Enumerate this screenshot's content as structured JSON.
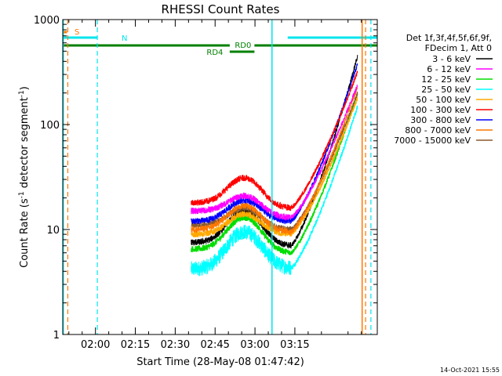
{
  "chart_data": {
    "type": "line",
    "title": "RHESSI Count Rates",
    "xlabel": "Start Time (28-May-08 01:47:42)",
    "ylabel_main": "Count Rate (s",
    "ylabel_sup": "-1",
    "ylabel_tail": " detector segment",
    "ylabel_sup2": "-1",
    "ylabel_close": ")",
    "yscale": "log",
    "ylim": [
      1,
      1000
    ],
    "xlim_min": [
      107.7,
      226
    ],
    "y_ticks": [
      {
        "v": 1,
        "label": "1"
      },
      {
        "v": 10,
        "label": "10"
      },
      {
        "v": 100,
        "label": "100"
      },
      {
        "v": 1000,
        "label": "1000"
      }
    ],
    "x_ticks": [
      {
        "m": 120,
        "label": "02:00"
      },
      {
        "m": 135,
        "label": "02:15"
      },
      {
        "m": 150,
        "label": "02:30"
      },
      {
        "m": 165,
        "label": "02:45"
      },
      {
        "m": 180,
        "label": "03:00"
      },
      {
        "m": 195,
        "label": "03:15"
      }
    ],
    "legend_header": [
      "Det 1f,3f,4f,5f,6f,9f,",
      "FDecim 1, Att 0"
    ],
    "timestamp": "14-Oct-2021 15:55",
    "series": [
      {
        "name": "3 - 6 keV",
        "color": "#000000",
        "pre": 7.5,
        "peak": 15,
        "post": 7,
        "end": 450
      },
      {
        "name": "6 - 12 keV",
        "color": "#ff00ff",
        "pre": 15,
        "peak": 21,
        "post": 13,
        "end": 240
      },
      {
        "name": "12 - 25 keV",
        "color": "#00dd00",
        "pre": 6.5,
        "peak": 13,
        "post": 6,
        "end": 200
      },
      {
        "name": "25 - 50 keV",
        "color": "#00ffff",
        "pre": 4.2,
        "peak": 9.5,
        "post": 4.3,
        "end": 150
      },
      {
        "name": "50 - 100 keV",
        "color": "#ffaa00",
        "pre": 9,
        "peak": 14,
        "post": 9,
        "end": 180
      },
      {
        "name": "100 - 300 keV",
        "color": "#ff0000",
        "pre": 18,
        "peak": 31,
        "post": 16,
        "end": 320
      },
      {
        "name": "300 - 800 keV",
        "color": "#0000ff",
        "pre": 12,
        "peak": 19,
        "post": 12,
        "end": 380
      },
      {
        "name": "800 - 7000 keV",
        "color": "#ff7700",
        "pre": 10,
        "peak": 17,
        "post": 9.5,
        "end": 230
      },
      {
        "name": "7000 - 15000 keV",
        "color": "#8b5a2b",
        "pre": 11,
        "peak": 16,
        "post": 10,
        "end": 200
      }
    ],
    "annotations": [
      {
        "text": "S",
        "color": "#ff7700"
      },
      {
        "text": "N",
        "color": "#00e5ee"
      },
      {
        "text": "RD0",
        "color": "#008000"
      },
      {
        "text": "RD4",
        "color": "#008000"
      }
    ]
  }
}
